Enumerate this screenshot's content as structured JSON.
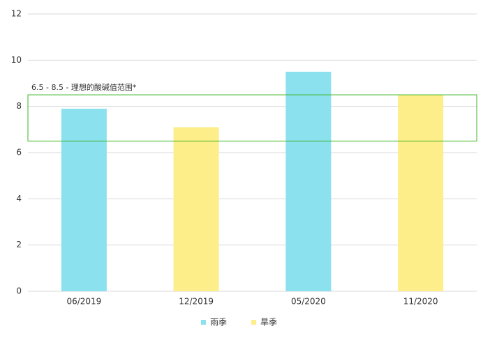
{
  "chart_data": {
    "type": "bar",
    "categories": [
      "06/2019",
      "12/2019",
      "05/2020",
      "11/2020"
    ],
    "series": [
      {
        "name": "雨季",
        "color": "#8be1ed",
        "values": [
          7.9,
          null,
          9.5,
          null
        ]
      },
      {
        "name": "旱季",
        "color": "#fdee8a",
        "values": [
          null,
          7.1,
          null,
          8.5
        ]
      }
    ],
    "ylim": [
      0,
      12
    ],
    "yticks": [
      0,
      2,
      4,
      6,
      8,
      10,
      12
    ],
    "grid": true,
    "band": {
      "from": 6.5,
      "to": 8.5,
      "label": "6.5 - 8.5 - 理想的酸碱值范围*",
      "color": "#3cb521"
    },
    "legend": "bottom"
  }
}
